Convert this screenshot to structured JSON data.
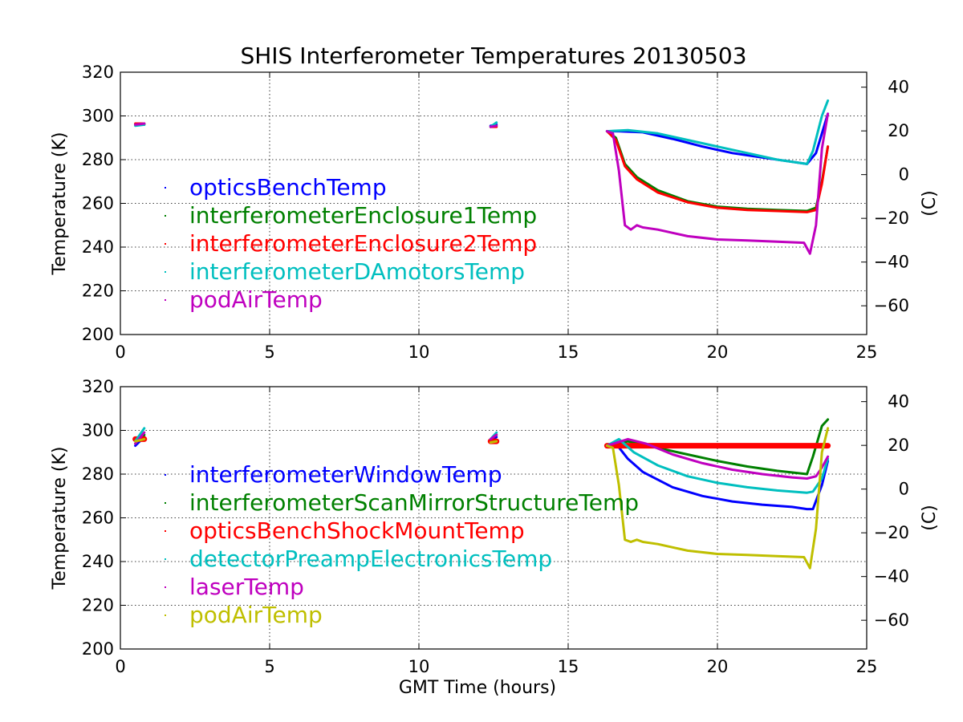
{
  "title": "SHIS Interferometer Temperatures 20130503",
  "chart_data": [
    {
      "type": "line",
      "xlabel": "",
      "ylabel": "Temperature (K)",
      "y2label": "(C)",
      "xlim": [
        0,
        25
      ],
      "ylim": [
        200,
        320
      ],
      "xticks": [
        "0",
        "5",
        "10",
        "15",
        "20",
        "25"
      ],
      "yticks": [
        "200",
        "220",
        "240",
        "260",
        "280",
        "300",
        "320"
      ],
      "y2ticks": [
        "−60",
        "−40",
        "−20",
        "0",
        "20",
        "40"
      ],
      "grid": true,
      "legend_position": "left",
      "series": [
        {
          "name": "opticsBenchTemp",
          "color": "#0000ff",
          "segments": [
            [
              [
                0.5,
                296
              ],
              [
                0.8,
                296.5
              ]
            ],
            [
              [
                12.4,
                295.5
              ],
              [
                12.6,
                296
              ]
            ],
            [
              [
                16.3,
                293
              ],
              [
                16.7,
                293
              ],
              [
                17.5,
                292.5
              ],
              [
                18.5,
                289.5
              ],
              [
                19.5,
                286
              ],
              [
                20.5,
                283
              ],
              [
                21.5,
                281
              ],
              [
                22.5,
                279
              ],
              [
                23.0,
                278
              ],
              [
                23.3,
                283
              ],
              [
                23.7,
                301
              ]
            ]
          ]
        },
        {
          "name": "interferometerEnclosure1Temp",
          "color": "#008000",
          "segments": [
            [
              [
                0.5,
                296
              ],
              [
                0.8,
                296
              ]
            ],
            [
              [
                12.4,
                295
              ],
              [
                12.6,
                295.5
              ]
            ],
            [
              [
                16.3,
                293
              ],
              [
                16.6,
                290
              ],
              [
                16.9,
                278
              ],
              [
                17.3,
                272
              ],
              [
                18.0,
                266
              ],
              [
                19.0,
                261
              ],
              [
                20.0,
                258.5
              ],
              [
                21.0,
                257.5
              ],
              [
                22.0,
                257
              ],
              [
                23.0,
                256.5
              ],
              [
                23.3,
                258
              ],
              [
                23.5,
                270
              ],
              [
                23.7,
                286
              ]
            ]
          ]
        },
        {
          "name": "interferometerEnclosure2Temp",
          "color": "#ff0000",
          "segments": [
            [
              [
                0.5,
                296.5
              ],
              [
                0.8,
                296.5
              ]
            ],
            [
              [
                12.4,
                295
              ],
              [
                12.6,
                295
              ]
            ],
            [
              [
                16.3,
                293
              ],
              [
                16.6,
                289
              ],
              [
                16.9,
                277
              ],
              [
                17.3,
                271
              ],
              [
                18.0,
                265
              ],
              [
                19.0,
                260.5
              ],
              [
                20.0,
                258
              ],
              [
                21.0,
                257
              ],
              [
                22.0,
                256.5
              ],
              [
                23.0,
                256
              ],
              [
                23.3,
                257
              ],
              [
                23.5,
                269
              ],
              [
                23.7,
                286
              ]
            ]
          ]
        },
        {
          "name": "interferometerDAmotorsTemp",
          "color": "#00bfbf",
          "segments": [
            [
              [
                0.5,
                295.5
              ],
              [
                0.8,
                296
              ]
            ],
            [
              [
                12.4,
                295
              ],
              [
                12.6,
                297
              ]
            ],
            [
              [
                16.3,
                293
              ],
              [
                17.0,
                293.5
              ],
              [
                18.0,
                292
              ],
              [
                19.0,
                289
              ],
              [
                20.0,
                286
              ],
              [
                21.0,
                283
              ],
              [
                22.0,
                280
              ],
              [
                23.0,
                278
              ],
              [
                23.2,
                284
              ],
              [
                23.5,
                300
              ],
              [
                23.7,
                307
              ]
            ]
          ]
        },
        {
          "name": "podAirTemp",
          "color": "#bf00bf",
          "segments": [
            [
              [
                0.5,
                296
              ],
              [
                0.8,
                296.5
              ]
            ],
            [
              [
                12.4,
                295
              ],
              [
                12.6,
                295.5
              ]
            ],
            [
              [
                16.3,
                293
              ],
              [
                16.5,
                292
              ],
              [
                16.7,
                275
              ],
              [
                16.9,
                250
              ],
              [
                17.1,
                248
              ],
              [
                17.3,
                250
              ],
              [
                17.5,
                249
              ],
              [
                18.0,
                248
              ],
              [
                18.5,
                246.5
              ],
              [
                19.0,
                245
              ],
              [
                20.0,
                243.5
              ],
              [
                21.0,
                243
              ],
              [
                22.0,
                242.5
              ],
              [
                22.9,
                242
              ],
              [
                23.1,
                237
              ],
              [
                23.3,
                250
              ],
              [
                23.5,
                285
              ],
              [
                23.7,
                301
              ]
            ]
          ]
        }
      ]
    },
    {
      "type": "line",
      "xlabel": "GMT Time (hours)",
      "ylabel": "Temperature (K)",
      "y2label": "(C)",
      "xlim": [
        0,
        25
      ],
      "ylim": [
        200,
        320
      ],
      "xticks": [
        "0",
        "5",
        "10",
        "15",
        "20",
        "25"
      ],
      "yticks": [
        "200",
        "220",
        "240",
        "260",
        "280",
        "300",
        "320"
      ],
      "y2ticks": [
        "−60",
        "−40",
        "−20",
        "0",
        "20",
        "40"
      ],
      "grid": true,
      "legend_position": "left",
      "series": [
        {
          "name": "interferometerWindowTemp",
          "color": "#0000ff",
          "segments": [
            [
              [
                0.5,
                293
              ],
              [
                0.8,
                297
              ]
            ],
            [
              [
                12.4,
                295
              ],
              [
                12.6,
                297
              ]
            ],
            [
              [
                16.3,
                293
              ],
              [
                16.6,
                294
              ],
              [
                17.0,
                287
              ],
              [
                17.5,
                281
              ],
              [
                18.5,
                274
              ],
              [
                19.5,
                270
              ],
              [
                20.5,
                267.5
              ],
              [
                21.5,
                266
              ],
              [
                22.5,
                265
              ],
              [
                23.0,
                264
              ],
              [
                23.2,
                264
              ],
              [
                23.5,
                275
              ],
              [
                23.7,
                286
              ]
            ]
          ]
        },
        {
          "name": "interferometerScanMirrorStructureTemp",
          "color": "#008000",
          "segments": [
            [
              [
                0.5,
                294
              ],
              [
                0.8,
                298
              ]
            ],
            [
              [
                12.4,
                296
              ],
              [
                12.6,
                298
              ]
            ],
            [
              [
                16.3,
                293
              ],
              [
                17.0,
                295
              ],
              [
                18.0,
                292
              ],
              [
                19.0,
                289
              ],
              [
                20.0,
                286
              ],
              [
                21.0,
                283.5
              ],
              [
                22.0,
                281.5
              ],
              [
                23.0,
                280
              ],
              [
                23.2,
                288
              ],
              [
                23.5,
                302
              ],
              [
                23.7,
                305
              ]
            ]
          ]
        },
        {
          "name": "opticsBenchShockMountTemp",
          "color": "#ff0000",
          "segments": [
            [
              [
                0.5,
                296
              ],
              [
                0.8,
                296
              ]
            ],
            [
              [
                12.4,
                295
              ],
              [
                12.6,
                295
              ]
            ],
            [
              [
                16.3,
                293
              ],
              [
                23.7,
                293
              ]
            ]
          ]
        },
        {
          "name": "detectorPreampElectronicsTemp",
          "color": "#00bfbf",
          "segments": [
            [
              [
                0.5,
                295
              ],
              [
                0.8,
                301
              ]
            ],
            [
              [
                12.4,
                296
              ],
              [
                12.6,
                299
              ]
            ],
            [
              [
                16.3,
                293
              ],
              [
                16.7,
                296
              ],
              [
                17.2,
                290
              ],
              [
                18.0,
                284
              ],
              [
                19.0,
                279
              ],
              [
                20.0,
                276
              ],
              [
                21.0,
                274
              ],
              [
                22.0,
                272.5
              ],
              [
                23.0,
                271.5
              ],
              [
                23.2,
                272
              ],
              [
                23.5,
                278
              ],
              [
                23.7,
                287
              ]
            ]
          ]
        },
        {
          "name": "laserTemp",
          "color": "#bf00bf",
          "segments": [
            [
              [
                0.5,
                294
              ],
              [
                0.8,
                299
              ]
            ],
            [
              [
                12.4,
                296
              ],
              [
                12.6,
                298
              ]
            ],
            [
              [
                16.3,
                293
              ],
              [
                17.0,
                296
              ],
              [
                17.6,
                294
              ],
              [
                18.5,
                289
              ],
              [
                19.5,
                285
              ],
              [
                20.5,
                282
              ],
              [
                21.5,
                280
              ],
              [
                22.5,
                278.5
              ],
              [
                23.0,
                278
              ],
              [
                23.3,
                279
              ],
              [
                23.5,
                283
              ],
              [
                23.7,
                288
              ]
            ]
          ]
        },
        {
          "name": "podAirTemp",
          "color": "#bfbf00",
          "segments": [
            [
              [
                0.5,
                295
              ],
              [
                0.8,
                296
              ]
            ],
            [
              [
                12.4,
                294.5
              ],
              [
                12.6,
                295
              ]
            ],
            [
              [
                16.3,
                293
              ],
              [
                16.5,
                292
              ],
              [
                16.7,
                275
              ],
              [
                16.9,
                250
              ],
              [
                17.1,
                249
              ],
              [
                17.3,
                250
              ],
              [
                17.5,
                249
              ],
              [
                18.0,
                248
              ],
              [
                18.5,
                246.5
              ],
              [
                19.0,
                245
              ],
              [
                20.0,
                243.5
              ],
              [
                21.0,
                243
              ],
              [
                22.0,
                242.5
              ],
              [
                22.9,
                242
              ],
              [
                23.1,
                237
              ],
              [
                23.3,
                255
              ],
              [
                23.5,
                290
              ],
              [
                23.7,
                301
              ]
            ]
          ]
        }
      ]
    }
  ]
}
